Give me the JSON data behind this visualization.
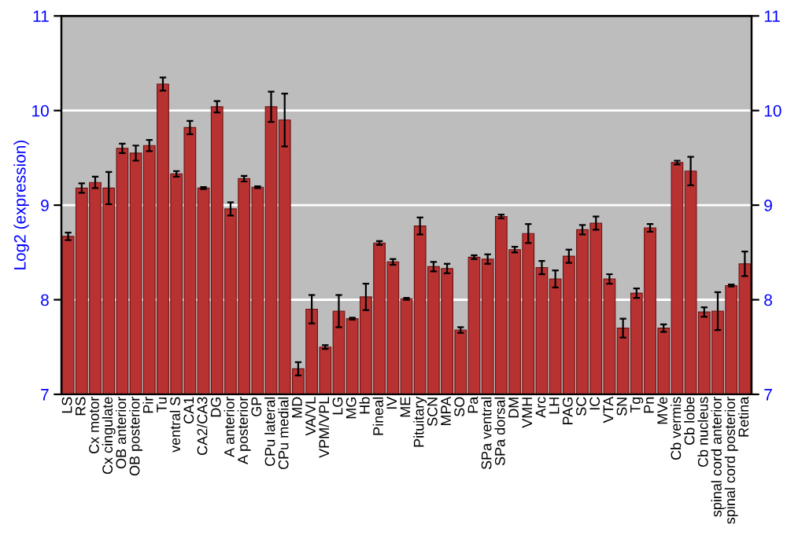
{
  "chart_data": {
    "type": "bar",
    "ylabel": "Log2 (expression)",
    "categories": [
      "LS",
      "RS",
      "Cx motor",
      "Cx cingulate",
      "OB anterior",
      "OB posterior",
      "Pir",
      "Tu",
      "ventral S",
      "CA1",
      "CA2/CA3",
      "DG",
      "A anterior",
      "A posterior",
      "GP",
      "CPu lateral",
      "CPu medial",
      "MD",
      "VA/VL",
      "VPM/VPL",
      "LG",
      "MG",
      "Hb",
      "Pineal",
      "IV",
      "ME",
      "Pituitary",
      "SCN",
      "MPA",
      "SO",
      "Pa",
      "SPa ventral",
      "SPa dorsal",
      "DM",
      "VMH",
      "Arc",
      "LH",
      "PAG",
      "SC",
      "IC",
      "VTA",
      "SN",
      "Tg",
      "Pn",
      "MVe",
      "Cb vermis",
      "Cb lobe",
      "Cb nucleus",
      "spinal cord anterior",
      "spinal cord posterior",
      "Retina"
    ],
    "values": [
      8.67,
      9.18,
      9.24,
      9.18,
      9.6,
      9.55,
      9.63,
      10.28,
      9.33,
      9.82,
      9.18,
      10.04,
      8.96,
      9.28,
      9.19,
      10.04,
      9.9,
      7.27,
      7.9,
      7.5,
      7.88,
      7.8,
      8.03,
      8.6,
      8.4,
      8.01,
      8.78,
      8.35,
      8.33,
      7.68,
      8.45,
      8.43,
      8.88,
      8.53,
      8.7,
      8.34,
      8.22,
      8.46,
      8.74,
      8.81,
      8.22,
      7.7,
      8.07,
      8.76,
      7.7,
      9.45,
      9.36,
      7.87,
      7.88,
      8.15,
      8.38
    ],
    "errors": [
      0.04,
      0.05,
      0.06,
      0.17,
      0.05,
      0.08,
      0.06,
      0.07,
      0.03,
      0.07,
      0.01,
      0.06,
      0.07,
      0.03,
      0.01,
      0.16,
      0.28,
      0.07,
      0.15,
      0.02,
      0.17,
      0.01,
      0.14,
      0.02,
      0.03,
      0.01,
      0.09,
      0.05,
      0.05,
      0.03,
      0.02,
      0.05,
      0.02,
      0.03,
      0.1,
      0.07,
      0.09,
      0.07,
      0.05,
      0.07,
      0.05,
      0.1,
      0.05,
      0.04,
      0.04,
      0.02,
      0.15,
      0.05,
      0.2,
      0.01,
      0.13
    ],
    "color": "#b83232",
    "ylim": [
      7,
      11
    ],
    "yticks": [
      7,
      8,
      9,
      10,
      11
    ],
    "y2lim": [
      7,
      11
    ],
    "y2ticks": [
      7,
      8,
      9,
      10,
      11
    ],
    "grid": "y"
  }
}
